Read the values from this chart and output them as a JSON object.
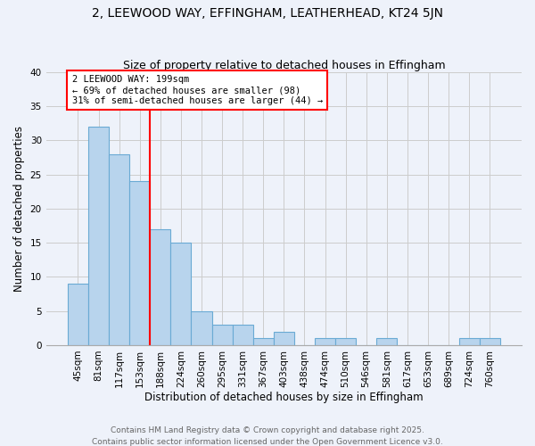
{
  "title_line1": "2, LEEWOOD WAY, EFFINGHAM, LEATHERHEAD, KT24 5JN",
  "title_line2": "Size of property relative to detached houses in Effingham",
  "xlabel": "Distribution of detached houses by size in Effingham",
  "ylabel": "Number of detached properties",
  "categories": [
    "45sqm",
    "81sqm",
    "117sqm",
    "153sqm",
    "188sqm",
    "224sqm",
    "260sqm",
    "295sqm",
    "331sqm",
    "367sqm",
    "403sqm",
    "438sqm",
    "474sqm",
    "510sqm",
    "546sqm",
    "581sqm",
    "617sqm",
    "653sqm",
    "689sqm",
    "724sqm",
    "760sqm"
  ],
  "values": [
    9,
    32,
    28,
    24,
    17,
    15,
    5,
    3,
    3,
    1,
    2,
    0,
    1,
    1,
    0,
    1,
    0,
    0,
    0,
    1,
    1
  ],
  "bar_color": "#b8d4ed",
  "bar_edge_color": "#6aaad4",
  "vline_x": 3.5,
  "vline_color": "red",
  "annotation_text": "2 LEEWOOD WAY: 199sqm\n← 69% of detached houses are smaller (98)\n31% of semi-detached houses are larger (44) →",
  "annotation_box_color": "white",
  "annotation_box_edge": "red",
  "ylim": [
    0,
    40
  ],
  "yticks": [
    0,
    5,
    10,
    15,
    20,
    25,
    30,
    35,
    40
  ],
  "grid_color": "#cccccc",
  "background_color": "#eef2fa",
  "footer_line1": "Contains HM Land Registry data © Crown copyright and database right 2025.",
  "footer_line2": "Contains public sector information licensed under the Open Government Licence v3.0.",
  "title_fontsize": 10,
  "subtitle_fontsize": 9,
  "axis_label_fontsize": 8.5,
  "tick_fontsize": 7.5,
  "annotation_fontsize": 7.5,
  "footer_fontsize": 6.5
}
